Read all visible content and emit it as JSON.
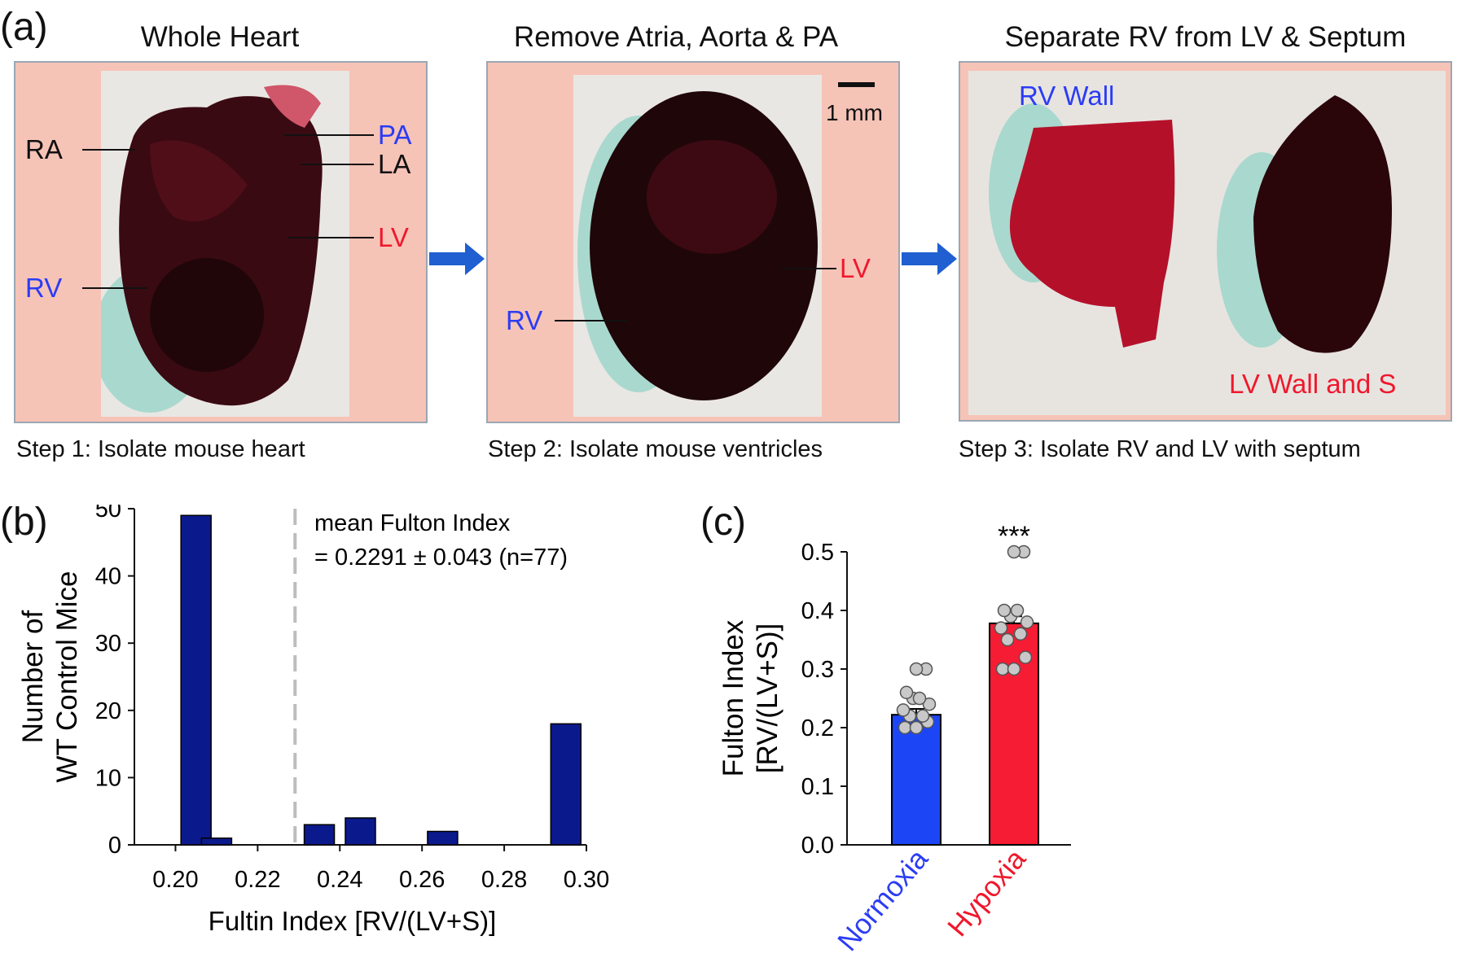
{
  "panel_a": {
    "letter": "(a)",
    "steps": [
      {
        "title": "Whole Heart",
        "caption": "Step 1: Isolate mouse heart",
        "labels": {
          "ra": "RA",
          "pa": "PA",
          "la": "LA",
          "lv": "LV",
          "rv": "RV"
        }
      },
      {
        "title": "Remove Atria, Aorta & PA",
        "caption": "Step 2: Isolate mouse ventricles",
        "labels": {
          "scale": "1 mm",
          "lv": "LV",
          "rv": "RV"
        }
      },
      {
        "title": "Separate RV from LV & Septum",
        "caption": "Step 3: Isolate RV and LV with septum",
        "labels": {
          "rv_wall": "RV Wall",
          "lv_wall": "LV Wall and S"
        }
      }
    ],
    "colors": {
      "photo_bg": "#f6c3b7",
      "arrow": "#1f5fd1",
      "blue_label": "#2b3cf5",
      "red_label": "#f0182c"
    }
  },
  "chart_data": [
    {
      "panel": "(b)",
      "type": "bar",
      "x": [
        0.205,
        0.21,
        0.235,
        0.245,
        0.265,
        0.295
      ],
      "values": [
        49,
        1,
        3,
        4,
        2,
        18
      ],
      "xticks": [
        "0.20",
        "0.22",
        "0.24",
        "0.26",
        "0.28",
        "0.30"
      ],
      "yticks": [
        "0",
        "10",
        "20",
        "30",
        "40",
        "50"
      ],
      "xlim": [
        0.19,
        0.3
      ],
      "ylim": [
        0,
        50
      ],
      "xlabel": "Fultin Index [RV/(LV+S)]",
      "ylabel_lines": [
        "Number of",
        "WT Control Mice"
      ],
      "annotation_lines": [
        "mean Fulton Index",
        "= 0.2291 ± 0.043 (n=77)"
      ],
      "mean_line_x": 0.2291,
      "bar_color": "#0a1a8c",
      "mean_line_color": "#bdbdbd"
    },
    {
      "panel": "(c)",
      "type": "bar",
      "categories": [
        "Normoxia",
        "Hypoxia"
      ],
      "values": [
        0.222,
        0.378
      ],
      "errors": [
        0.01,
        0.012
      ],
      "points": [
        [
          0.2,
          0.2,
          0.21,
          0.22,
          0.22,
          0.23,
          0.24,
          0.25,
          0.25,
          0.26,
          0.3,
          0.3
        ],
        [
          0.3,
          0.3,
          0.32,
          0.35,
          0.36,
          0.37,
          0.38,
          0.39,
          0.4,
          0.4,
          0.5,
          0.5
        ]
      ],
      "yticks": [
        "0.0",
        "0.1",
        "0.2",
        "0.3",
        "0.4",
        "0.5"
      ],
      "ylim": [
        0,
        0.5
      ],
      "ylabel_lines": [
        "Fulton Index",
        "[RV/(LV+S)]"
      ],
      "significance": "***",
      "colors": [
        "#1c46f5",
        "#f51c33"
      ],
      "category_colors": [
        "#2b3cf5",
        "#f0182c"
      ]
    }
  ]
}
